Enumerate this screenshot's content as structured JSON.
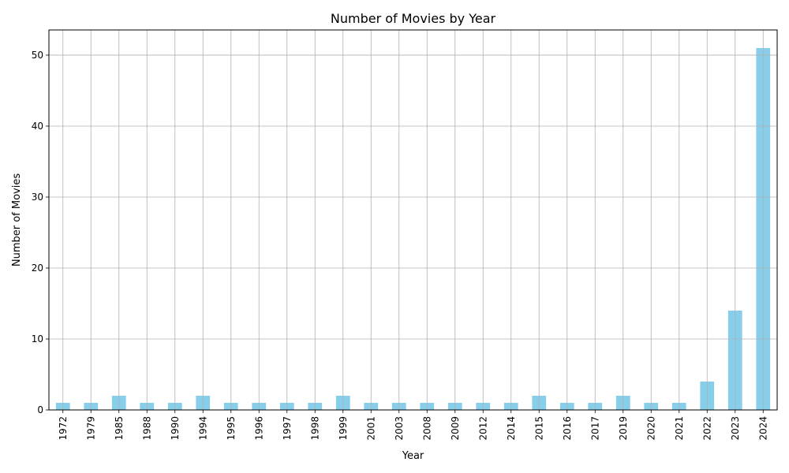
{
  "chart_data": {
    "type": "bar",
    "title": "Number of Movies by Year",
    "xlabel": "Year",
    "ylabel": "Number of Movies",
    "categories": [
      "1972",
      "1979",
      "1985",
      "1988",
      "1990",
      "1994",
      "1995",
      "1996",
      "1997",
      "1998",
      "1999",
      "2001",
      "2003",
      "2008",
      "2009",
      "2012",
      "2014",
      "2015",
      "2016",
      "2017",
      "2019",
      "2020",
      "2021",
      "2022",
      "2023",
      "2024"
    ],
    "values": [
      1,
      1,
      2,
      1,
      1,
      2,
      1,
      1,
      1,
      1,
      2,
      1,
      1,
      1,
      1,
      1,
      1,
      2,
      1,
      1,
      2,
      1,
      1,
      4,
      14,
      51
    ],
    "ylim": [
      0,
      53.55
    ],
    "yticks": [
      0,
      10,
      20,
      30,
      40,
      50
    ],
    "grid": true,
    "bar_color": "#87ceeb",
    "grid_color": "#b0b0b0"
  }
}
